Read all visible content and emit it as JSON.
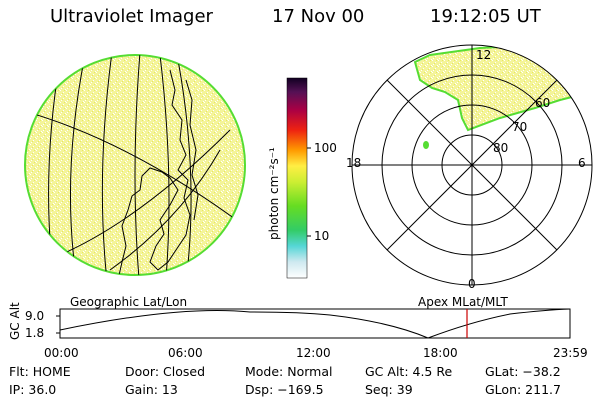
{
  "header": {
    "instrument": "Ultraviolet Imager",
    "date": "17 Nov 00",
    "time": "19:12:05 UT"
  },
  "colorbar": {
    "unit_label": "photon cm⁻²s⁻¹",
    "ticks": [
      "100",
      "10"
    ]
  },
  "polar": {
    "mlt_labels": [
      "12",
      "18",
      "6",
      "0"
    ],
    "lat_labels": [
      "60",
      "70",
      "80"
    ]
  },
  "orbit": {
    "left_label": "Geographic Lat/Lon",
    "right_label": "Apex MLat/MLT",
    "axis_label": "GC Alt",
    "y_ticks": [
      "9.0",
      "1.8"
    ],
    "x_ticks": [
      "00:00",
      "06:00",
      "12:00",
      "18:00",
      "23:59"
    ],
    "marker_color": "#cc0000"
  },
  "info": {
    "flt": "Flt: HOME",
    "door": "Door: Closed",
    "mode": "Mode: Normal",
    "gc_alt": "GC Alt: 4.5 Re",
    "glat": "GLat: −38.2",
    "ip": "IP: 36.0",
    "gain": "Gain: 13",
    "dsp": "Dsp: −169.5",
    "seq": "Seq: 39",
    "glon": "GLon: 211.7"
  },
  "colors": {
    "aurora_fill": "#f4f49a",
    "aurora_edge": "#55dd33"
  }
}
